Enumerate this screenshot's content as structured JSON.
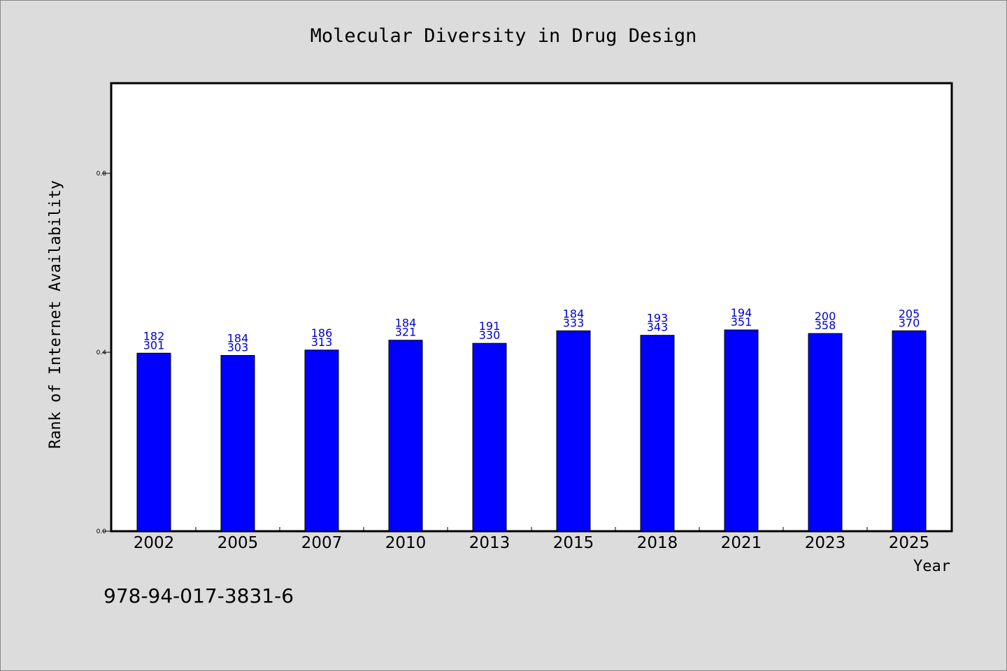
{
  "chart_data": {
    "type": "bar",
    "title": "Molecular Diversity in Drug Design",
    "xlabel": "Year",
    "ylabel": "Rank of Internet Availability",
    "categories": [
      "2002",
      "2005",
      "2007",
      "2010",
      "2013",
      "2015",
      "2018",
      "2021",
      "2023",
      "2025"
    ],
    "values": [
      0.398,
      0.393,
      0.405,
      0.427,
      0.42,
      0.448,
      0.438,
      0.45,
      0.442,
      0.448
    ],
    "label_top": [
      "182",
      "184",
      "186",
      "184",
      "191",
      "184",
      "193",
      "194",
      "200",
      "205"
    ],
    "label_bottom": [
      "301",
      "303",
      "313",
      "321",
      "330",
      "333",
      "343",
      "351",
      "358",
      "370"
    ],
    "yticks": [
      "0.0",
      "0.4",
      "0.8"
    ],
    "ylim": [
      0,
      1.0
    ],
    "bar_color": "#0000ff",
    "label_color": "#0000cc",
    "grid": false
  },
  "footer_text": "978-94-017-3831-6"
}
